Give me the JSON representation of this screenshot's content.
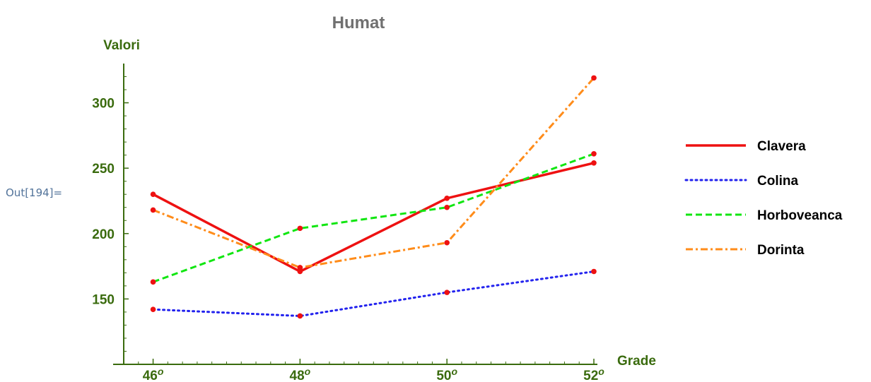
{
  "cell": {
    "out_label": "Out[194]="
  },
  "chart_data": {
    "type": "line",
    "title": "Humat",
    "xlabel": "Grade",
    "ylabel": "Valori",
    "x": [
      46,
      48,
      50,
      52
    ],
    "x_tick_labels": [
      "46",
      "48",
      "50",
      "52"
    ],
    "x_tick_suffix": "o",
    "xlim": [
      45.6,
      52
    ],
    "y_ticks": [
      150,
      200,
      250,
      300
    ],
    "ylim": [
      100,
      330
    ],
    "series": [
      {
        "name": "Clavera",
        "values": [
          230,
          171,
          227,
          254
        ],
        "color": "#ee1111",
        "style": "solid"
      },
      {
        "name": "Colina",
        "values": [
          142,
          137,
          155,
          171
        ],
        "color": "#2222ee",
        "style": "dotted"
      },
      {
        "name": "Horboveanca",
        "values": [
          163,
          204,
          220,
          261
        ],
        "color": "#11e611",
        "style": "dashed"
      },
      {
        "name": "Dorinta",
        "values": [
          218,
          174,
          193,
          319
        ],
        "color": "#ff8c1a",
        "style": "dashdot"
      }
    ],
    "marker_color": "#ee1111",
    "axis_color": "#3a6b0e",
    "legend_position": "right"
  }
}
